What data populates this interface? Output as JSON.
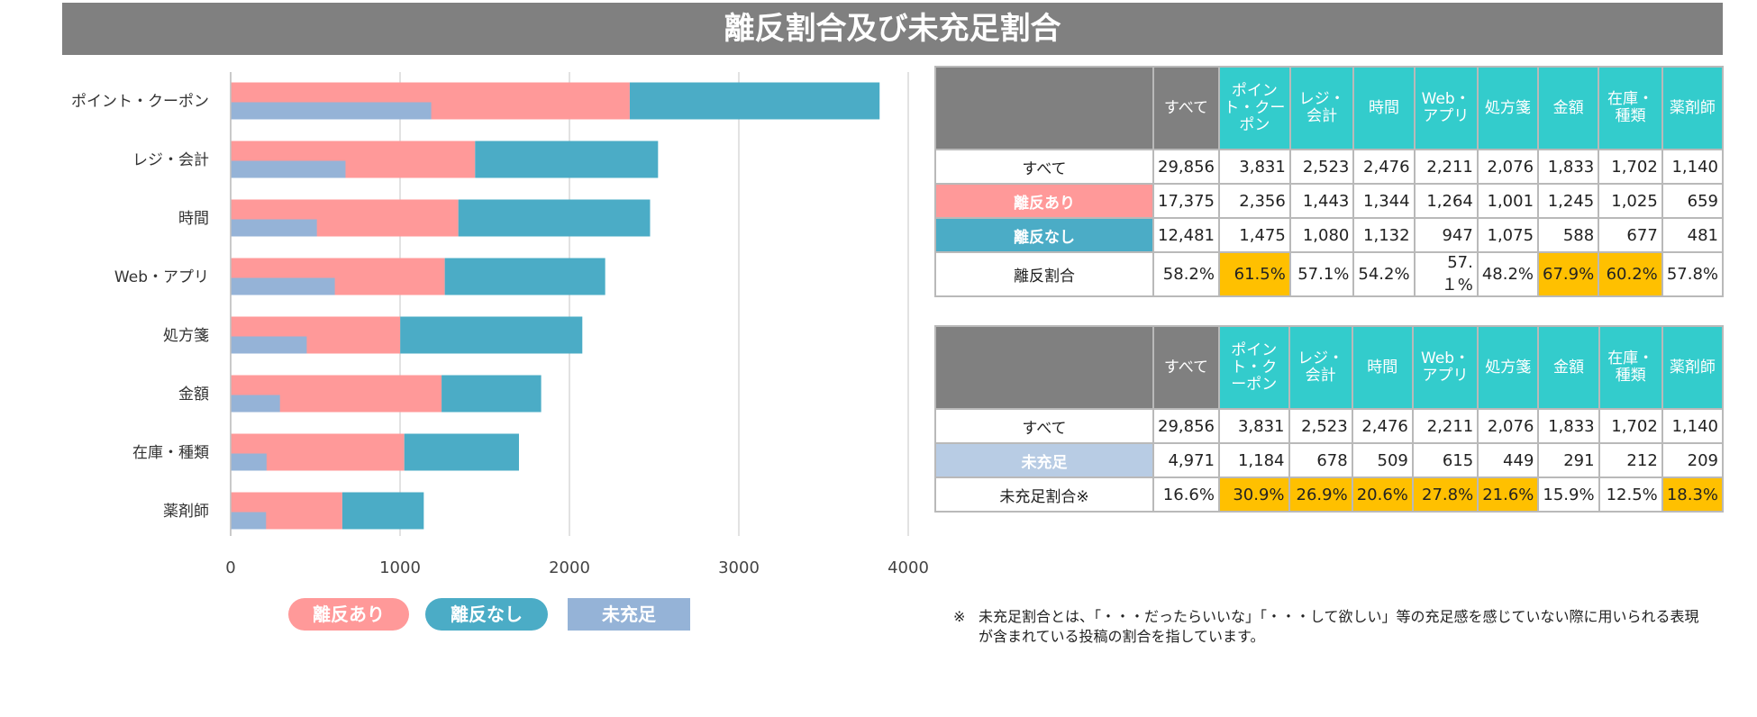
{
  "title": "離反割合及び未充足割合",
  "colors": {
    "ridatsu_ari": "#ff9999",
    "ridatsu_nashi": "#4bacc6",
    "mijuusoku": "#95b3d7",
    "header_gray": "#808080",
    "header_teal": "#33cccc",
    "highlight": "#ffc000"
  },
  "chart_data": {
    "type": "bar",
    "orientation": "horizontal",
    "categories": [
      "ポイント・クーポン",
      "レジ・会計",
      "時間",
      "Web・アプリ",
      "処方箋",
      "金額",
      "在庫・種類",
      "薬剤師"
    ],
    "series": [
      {
        "name": "離反あり",
        "values": [
          2356,
          1443,
          1344,
          1264,
          1001,
          1245,
          1025,
          659
        ]
      },
      {
        "name": "離反なし",
        "values": [
          1475,
          1080,
          1132,
          947,
          1075,
          588,
          677,
          481
        ]
      },
      {
        "name": "未充足",
        "values": [
          1184,
          678,
          509,
          615,
          449,
          291,
          212,
          209
        ]
      }
    ],
    "stacked_series": [
      "離反あり",
      "離反なし"
    ],
    "xlim": [
      0,
      4000
    ],
    "xticks": [
      "0",
      "1000",
      "2000",
      "3000",
      "4000"
    ],
    "grid": true
  },
  "legend": [
    "離反あり",
    "離反なし",
    "未充足"
  ],
  "table1": {
    "headers": [
      "すべて",
      "ポイント・クーポン",
      "レジ・会計",
      "時間",
      "Web・アプリ",
      "処方箋",
      "金額",
      "在庫・種類",
      "薬剤師"
    ],
    "rows": [
      {
        "label": "すべて",
        "values": [
          "29,856",
          "3,831",
          "2,523",
          "2,476",
          "2,211",
          "2,076",
          "1,833",
          "1,702",
          "1,140"
        ]
      },
      {
        "label": "離反あり",
        "values": [
          "17,375",
          "2,356",
          "1,443",
          "1,344",
          "1,264",
          "1,001",
          "1,245",
          "1,025",
          "659"
        ]
      },
      {
        "label": "離反なし",
        "values": [
          "12,481",
          "1,475",
          "1,080",
          "1,132",
          "947",
          "1,075",
          "588",
          "677",
          "481"
        ]
      },
      {
        "label": "離反割合",
        "values": [
          "58.2%",
          "61.5%",
          "57.1%",
          "54.2%",
          "57.１%",
          "48.2%",
          "67.9%",
          "60.2%",
          "57.8%"
        ]
      }
    ]
  },
  "table2": {
    "headers": [
      "すべて",
      "ポイント・クーポン",
      "レジ・会計",
      "時間",
      "Web・アプリ",
      "処方箋",
      "金額",
      "在庫・種類",
      "薬剤師"
    ],
    "rows": [
      {
        "label": "すべて",
        "values": [
          "29,856",
          "3,831",
          "2,523",
          "2,476",
          "2,211",
          "2,076",
          "1,833",
          "1,702",
          "1,140"
        ]
      },
      {
        "label": "未充足",
        "values": [
          "4,971",
          "1,184",
          "678",
          "509",
          "615",
          "449",
          "291",
          "212",
          "209"
        ]
      },
      {
        "label": "未充足割合※",
        "values": [
          "16.6%",
          "30.9%",
          "26.9%",
          "20.6%",
          "27.8%",
          "21.6%",
          "15.9%",
          "12.5%",
          "18.3%"
        ]
      }
    ]
  },
  "note": {
    "mark": "※",
    "text": "未充足割合とは、「・・・だったらいいな」「・・・して欲しい」等の充足感を感じていない際に用いられる表現が含まれている投稿の割合を指しています。"
  }
}
